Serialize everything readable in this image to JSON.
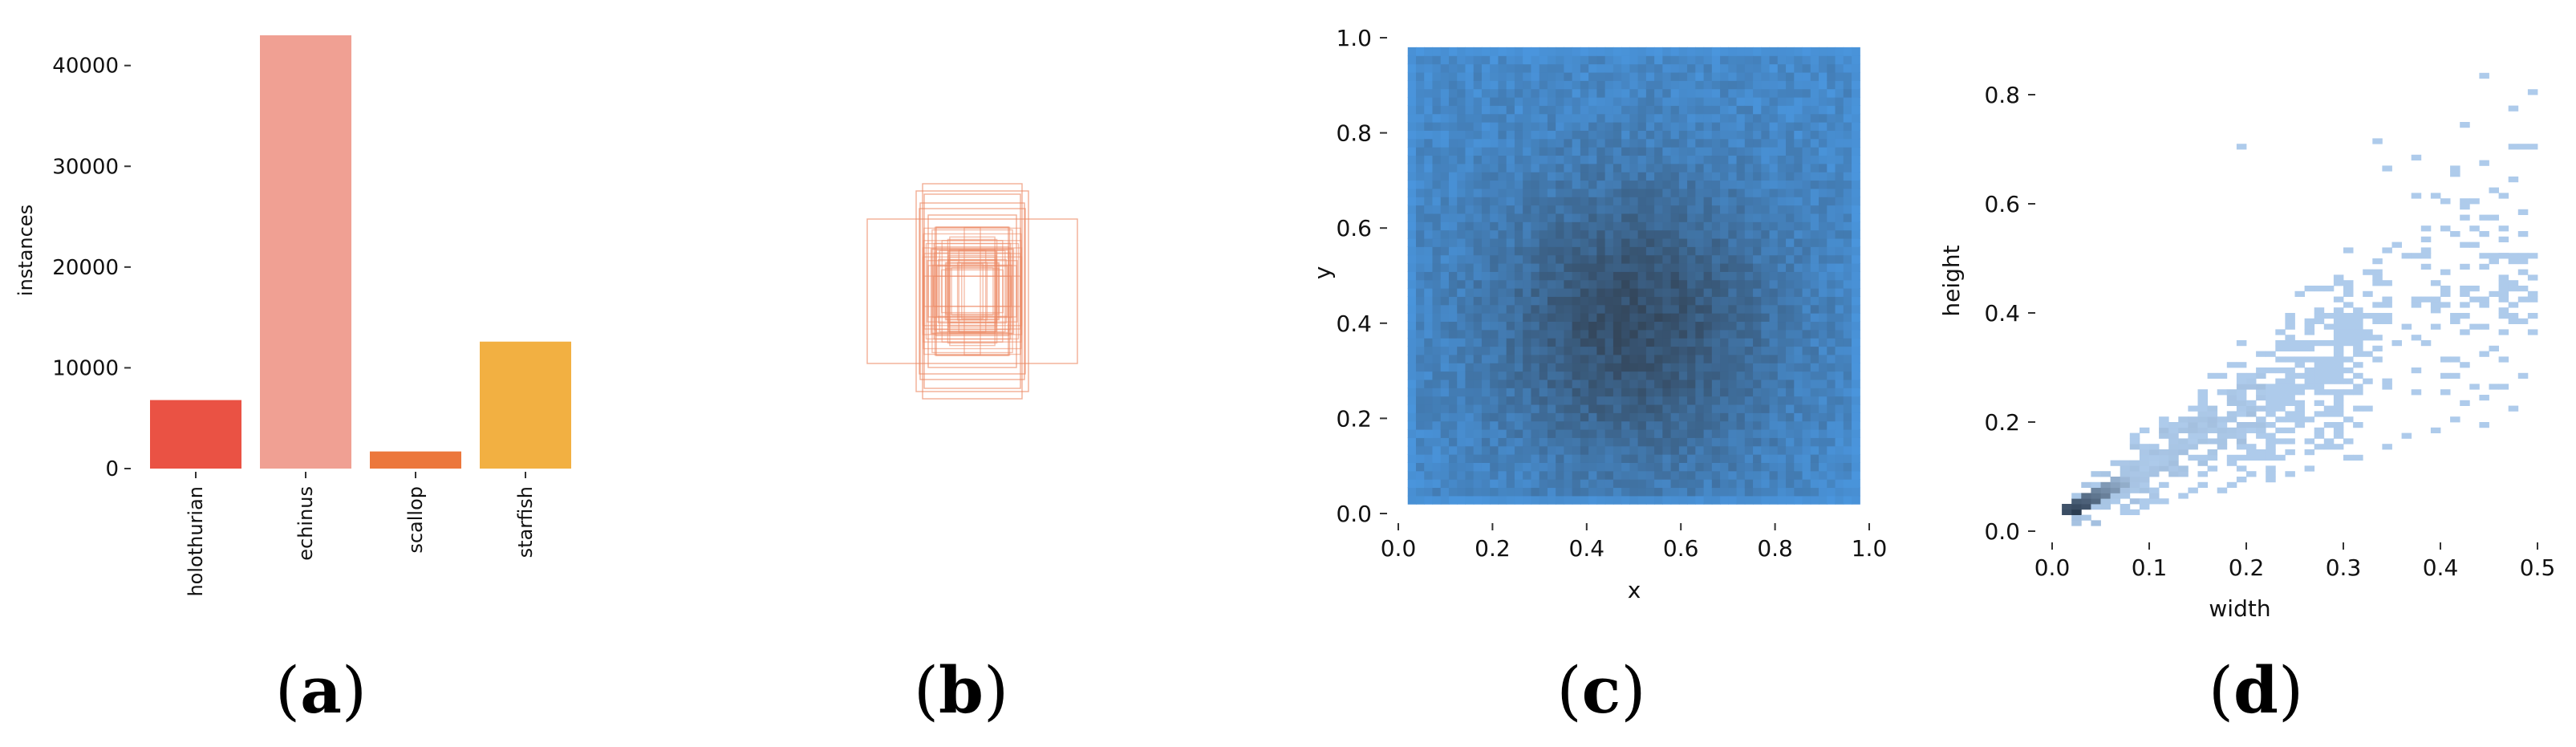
{
  "chart_data": [
    {
      "type": "bar",
      "panel_label": "a",
      "categories": [
        "holothurian",
        "echinus",
        "scallop",
        "starfish"
      ],
      "values": [
        6800,
        43000,
        1700,
        12600
      ],
      "colors": [
        "#ea5244",
        "#f0a093",
        "#ec773c",
        "#f2b042"
      ],
      "ylabel": "instances",
      "ylim": [
        0,
        43000
      ],
      "yticks": [
        0,
        10000,
        20000,
        30000,
        40000
      ],
      "ytick_labels": [
        "0",
        "10000",
        "20000",
        "30000",
        "40000"
      ],
      "grid": false
    },
    {
      "type": "other",
      "panel_label": "b",
      "description_kind": "overlaid bounding-box outlines centered at image center",
      "color": "#ec8a66"
    },
    {
      "type": "heatmap",
      "panel_label": "c",
      "xlabel": "x",
      "ylabel": "y",
      "xlim": [
        0.0,
        1.0
      ],
      "ylim": [
        0.0,
        1.0
      ],
      "xticks": [
        "0.0",
        "0.2",
        "0.4",
        "0.6",
        "0.8",
        "1.0"
      ],
      "yticks": [
        "0.0",
        "0.2",
        "0.4",
        "0.6",
        "0.8",
        "1.0"
      ],
      "bins": 55,
      "data_extent": [
        0.02,
        0.98
      ],
      "peak": [
        0.5,
        0.4
      ],
      "colors": {
        "low": "#4a96de",
        "high": "#34475c"
      }
    },
    {
      "type": "heatmap",
      "panel_label": "d",
      "xlabel": "width",
      "ylabel": "height",
      "xlim": [
        0.0,
        0.5
      ],
      "ylim": [
        0.0,
        0.85
      ],
      "xticks": [
        "0.0",
        "0.1",
        "0.2",
        "0.3",
        "0.4",
        "0.5"
      ],
      "yticks": [
        "0.0",
        "0.2",
        "0.4",
        "0.6",
        "0.8"
      ],
      "bin_size": 0.01,
      "peak": [
        0.02,
        0.03
      ],
      "outliers": [
        [
          0.44,
          0.83
        ],
        [
          0.33,
          0.71
        ],
        [
          0.19,
          0.7
        ],
        [
          0.37,
          0.68
        ],
        [
          0.42,
          0.74
        ],
        [
          0.41,
          0.66
        ],
        [
          0.34,
          0.66
        ],
        [
          0.48,
          0.54
        ],
        [
          0.46,
          0.5
        ],
        [
          0.46,
          0.43
        ],
        [
          0.47,
          0.39
        ],
        [
          0.49,
          0.46
        ],
        [
          0.4,
          0.47
        ],
        [
          0.45,
          0.33
        ],
        [
          0.43,
          0.44
        ],
        [
          0.37,
          0.61
        ],
        [
          0.38,
          0.55
        ]
      ],
      "colors": {
        "low": "#aecbeb",
        "high": "#2b3d52"
      }
    }
  ],
  "captions": [
    "a",
    "b",
    "c",
    "d"
  ]
}
